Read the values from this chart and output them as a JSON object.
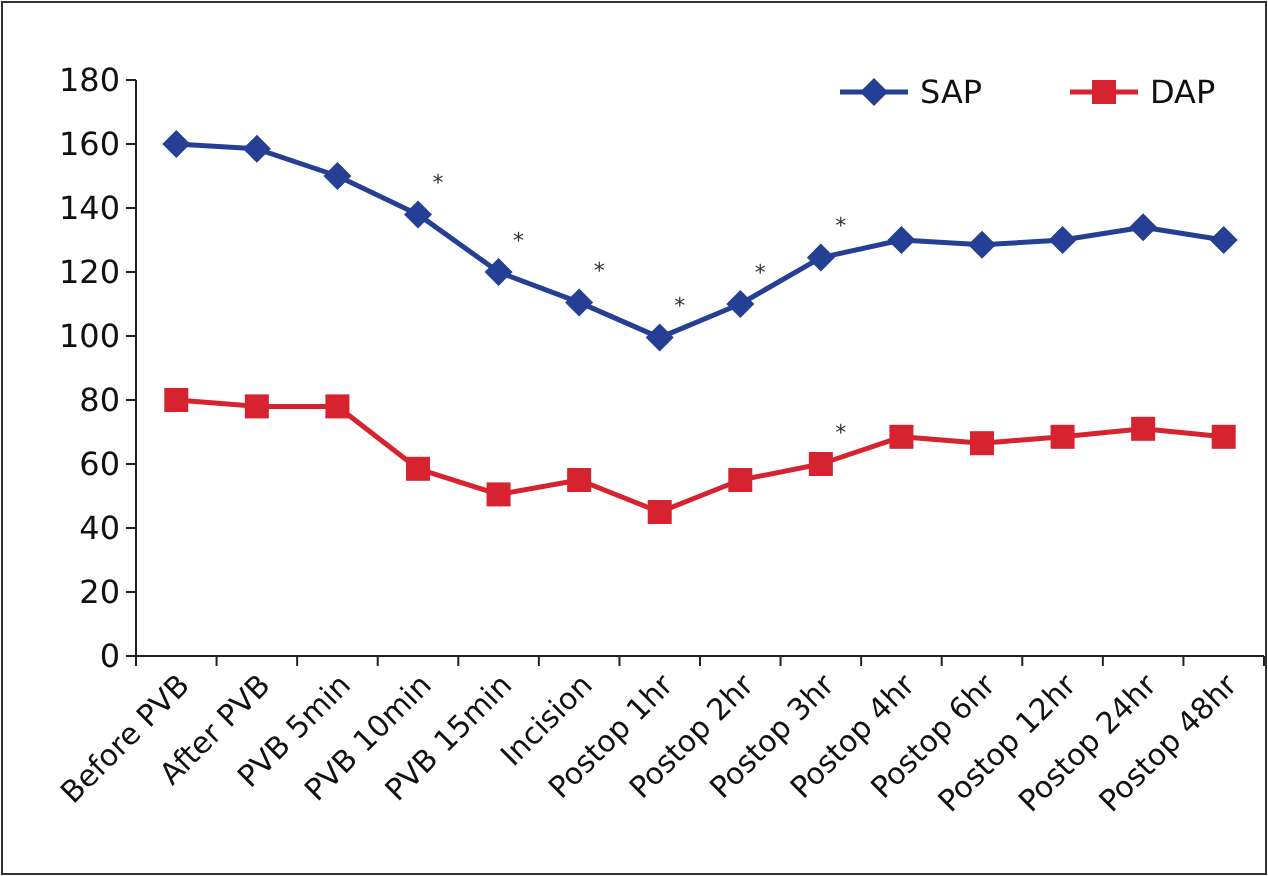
{
  "chart_data": {
    "type": "line",
    "categories": [
      "Before PVB",
      "After PVB",
      "PVB 5min",
      "PVB 10min",
      "PVB 15min",
      "Incision",
      "Postop 1hr",
      "Postop 2hr",
      "Postop 3hr",
      "Postop 4hr",
      "Postop 6hr",
      "Postop 12hr",
      "Postop 24hr",
      "Postop 48hr"
    ],
    "series": [
      {
        "name": "SAP",
        "color": "#253f94",
        "marker": "diamond",
        "values": [
          160,
          158.5,
          150,
          138,
          120,
          110.5,
          99.5,
          110,
          124.5,
          130,
          128.5,
          130,
          134,
          130
        ]
      },
      {
        "name": "DAP",
        "color": "#d7232f",
        "marker": "square",
        "values": [
          80,
          78,
          78,
          58.5,
          50.5,
          55,
          45,
          55,
          60,
          68.5,
          66.5,
          68.5,
          71,
          68.5
        ]
      }
    ],
    "ylim": [
      0,
      180
    ],
    "yticks": [
      0,
      20,
      40,
      60,
      80,
      100,
      120,
      140,
      160,
      180
    ],
    "legend": "top right",
    "grid": false,
    "annotations": [
      {
        "text": "*",
        "x": "PVB 10min",
        "y": 138
      },
      {
        "text": "*",
        "x": "PVB 15min",
        "y": 120
      },
      {
        "text": "*",
        "x": "Incision",
        "y": 110.5
      },
      {
        "text": "*",
        "x": "Postop 1hr",
        "y": 99.5
      },
      {
        "text": "*",
        "x": "Postop 2hr",
        "y": 110
      },
      {
        "text": "*",
        "x": "Postop 3hr",
        "y": 124.5
      },
      {
        "text": "*",
        "x": "Postop 3hr",
        "y": 60
      }
    ]
  }
}
